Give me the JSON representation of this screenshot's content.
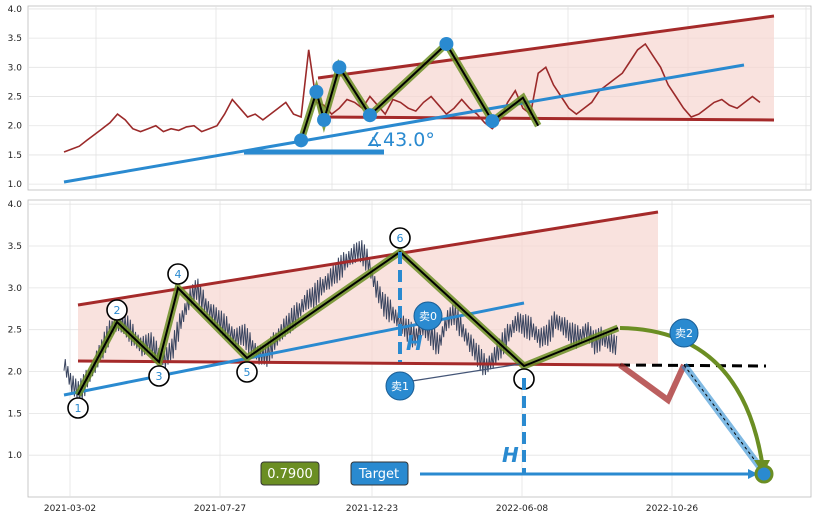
{
  "chart_data": [
    {
      "type": "line",
      "panel": "top",
      "ylim": [
        0.9,
        4.05
      ],
      "yticks": [
        "1.0",
        "1.5",
        "2.0",
        "2.5",
        "3.0",
        "3.5",
        "4.0"
      ],
      "angle_label": "∡43.0°",
      "series": [
        {
          "values": [
            1.55,
            1.6,
            1.65,
            1.75,
            1.85,
            1.95,
            2.05,
            2.2,
            2.1,
            1.95,
            1.9,
            1.95,
            2.0,
            1.9,
            1.95,
            1.92,
            1.98,
            2.0,
            1.9,
            1.95,
            2.0,
            2.2,
            2.45,
            2.3,
            2.15,
            2.2,
            2.1,
            2.2,
            2.3,
            2.4,
            2.2,
            2.15,
            3.3,
            2.4,
            2.35,
            2.2,
            2.3,
            2.45,
            2.4,
            2.3,
            2.5,
            2.35,
            2.2,
            2.45,
            2.4,
            2.3,
            2.25,
            2.4,
            2.5,
            2.35,
            2.2,
            2.3,
            2.45,
            2.3,
            2.2,
            2.05,
            1.95,
            2.1,
            2.4,
            2.6,
            2.3,
            2.2,
            2.9,
            3.0,
            2.7,
            2.5,
            2.3,
            2.2,
            2.3,
            2.4,
            2.6,
            2.7,
            2.8,
            2.9,
            3.1,
            3.3,
            3.4,
            3.2,
            3.0,
            2.7,
            2.5,
            2.3,
            2.15,
            2.2,
            2.3,
            2.4,
            2.45,
            2.35,
            2.3,
            2.4,
            2.5,
            2.4
          ]
        }
      ],
      "pattern_points": [
        [
          31,
          1.75
        ],
        [
          33,
          2.58
        ],
        [
          34,
          2.1
        ],
        [
          36,
          3.0
        ],
        [
          40,
          2.18
        ],
        [
          50,
          3.4
        ],
        [
          56,
          2.08
        ],
        [
          60,
          2.48
        ],
        [
          62,
          2.0
        ]
      ]
    },
    {
      "type": "line",
      "panel": "bottom",
      "ylim": [
        0.5,
        4.05
      ],
      "yticks": [
        "1.0",
        "1.5",
        "2.0",
        "2.5",
        "3.0",
        "3.5",
        "4.0"
      ],
      "xticks": [
        "2021-03-02",
        "2021-07-27",
        "2021-12-23",
        "2022-06-08",
        "2022-10-26"
      ],
      "point_labels": [
        "1",
        "2",
        "3",
        "4",
        "5",
        "6"
      ],
      "markers": {
        "sell0": "卖0",
        "sell1": "卖1",
        "sell2": "卖2",
        "h": "H"
      },
      "series": [
        {
          "values": [
            2.1,
            1.85,
            1.75,
            1.9,
            2.1,
            2.3,
            2.5,
            2.6,
            2.55,
            2.4,
            2.3,
            2.35,
            2.2,
            2.15,
            2.3,
            2.6,
            2.85,
            3.0,
            2.8,
            2.7,
            2.6,
            2.5,
            2.4,
            2.45,
            2.3,
            2.2,
            2.2,
            2.35,
            2.5,
            2.6,
            2.7,
            2.85,
            2.9,
            3.0,
            3.1,
            3.2,
            3.3,
            3.4,
            3.45,
            3.3,
            3.0,
            2.8,
            2.7,
            2.6,
            2.5,
            2.4,
            2.55,
            2.45,
            2.3,
            2.6,
            2.7,
            2.5,
            2.35,
            2.2,
            2.05,
            2.15,
            2.3,
            2.45,
            2.6,
            2.55,
            2.5,
            2.4,
            2.45,
            2.6,
            2.55,
            2.45,
            2.4,
            2.5,
            2.35,
            2.4,
            2.35,
            2.3
          ]
        }
      ],
      "target_value": "0.7900",
      "target_label": "Target"
    }
  ]
}
